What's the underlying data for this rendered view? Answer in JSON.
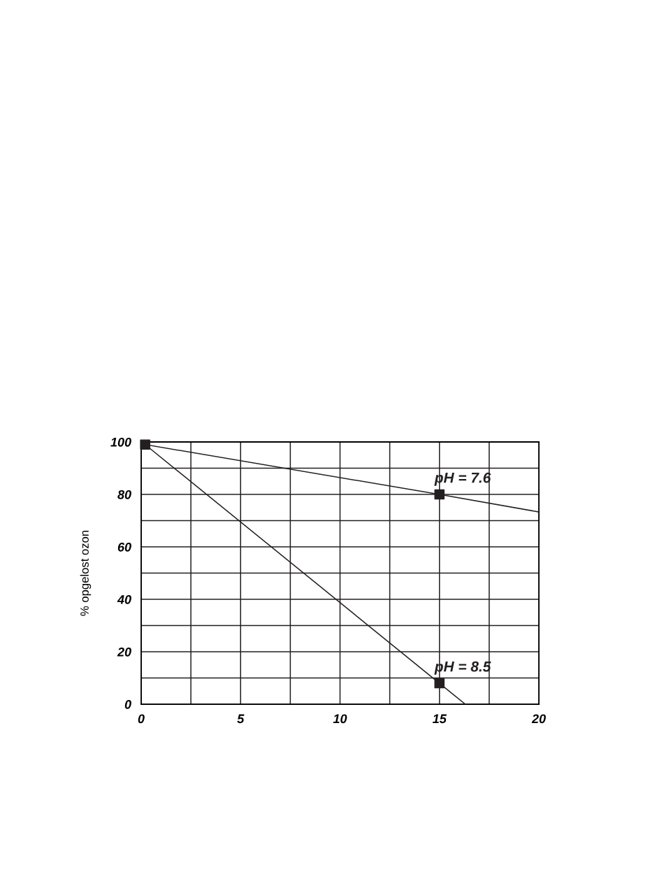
{
  "chart_data": {
    "type": "line",
    "ylabel": "% opgelost ozon",
    "series": [
      {
        "name": "pH = 7.6",
        "color": "#231f20",
        "x": [
          0.2,
          15,
          20
        ],
        "values": [
          99,
          80,
          73.3
        ]
      },
      {
        "name": "pH = 8.5",
        "color": "#231f20",
        "x": [
          0.2,
          15,
          16.3
        ],
        "values": [
          99,
          8,
          0
        ]
      },
      {
        "type": "scatter",
        "color": "#231f20",
        "marker": "square",
        "x": [
          0.2,
          15,
          15
        ],
        "values": [
          99,
          80,
          8
        ]
      }
    ],
    "xlim": [
      0,
      20
    ],
    "ylim": [
      0,
      100
    ],
    "xticks": [
      0,
      {
        "value": 2.5,
        "label": null
      },
      5,
      {
        "value": 7.5,
        "label": null
      },
      10,
      {
        "value": 12.5,
        "label": null
      },
      15,
      {
        "value": 17.5,
        "label": null
      },
      20
    ],
    "yticks": [
      0,
      {
        "value": 10,
        "label": null
      },
      20,
      {
        "value": 30,
        "label": null
      },
      40,
      {
        "value": 50,
        "label": null
      },
      60,
      {
        "value": 70,
        "label": null
      },
      80,
      {
        "value": 90,
        "label": null
      },
      100
    ],
    "grid": true,
    "marker": "none",
    "line_style": "solid",
    "legend": false
  }
}
